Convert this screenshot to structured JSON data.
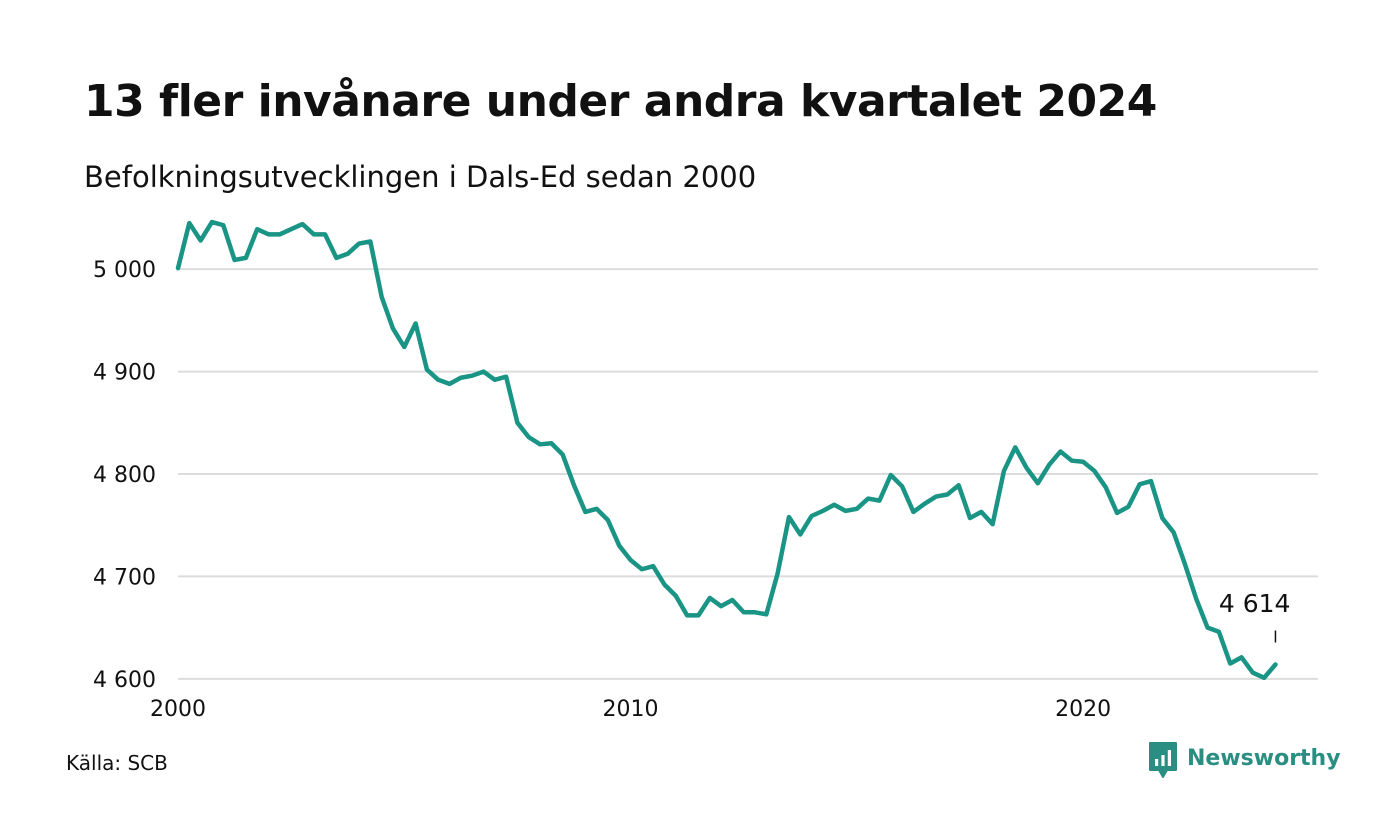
{
  "title": "13 fler invånare under andra kvartalet 2024",
  "subtitle": "Befolkningsutvecklingen i Dals-Ed sedan 2000",
  "source": "Källa: SCB",
  "brand": {
    "name": "Newsworthy",
    "icon": "newsworthy-logo-icon",
    "color": "#2a8f82"
  },
  "colors": {
    "line": "#1a9484",
    "grid": "#dcdcdc",
    "text": "#111111"
  },
  "chart_data": {
    "type": "line",
    "title": "13 fler invånare under andra kvartalet 2024",
    "subtitle": "Befolkningsutvecklingen i Dals-Ed sedan 2000",
    "xlabel": "",
    "ylabel": "",
    "xlim": [
      "2000-01",
      "2024-06"
    ],
    "ylim": [
      4594,
      5048
    ],
    "x_ticks": [
      {
        "label": "2000",
        "year": 2000
      },
      {
        "label": "2010",
        "year": 2010
      },
      {
        "label": "2020",
        "year": 2020
      }
    ],
    "y_ticks": [
      {
        "label": "5 000",
        "value": 5000
      },
      {
        "label": "4 900",
        "value": 4900
      },
      {
        "label": "4 800",
        "value": 4800
      },
      {
        "label": "4 700",
        "value": 4700
      },
      {
        "label": "4 600",
        "value": 4600
      }
    ],
    "grid": true,
    "legend": "none",
    "end_label": "4 614",
    "series": [
      {
        "x": [
          "2000-01",
          "2000-04",
          "2000-07",
          "2000-10",
          "2001-01",
          "2001-04",
          "2001-07",
          "2001-10",
          "2002-01",
          "2002-04",
          "2002-07",
          "2002-10",
          "2003-01",
          "2003-04",
          "2003-07",
          "2003-10",
          "2004-01",
          "2004-04",
          "2004-07",
          "2004-10",
          "2005-01",
          "2005-04",
          "2005-07",
          "2005-10",
          "2006-01",
          "2006-04",
          "2006-07",
          "2006-10",
          "2007-01",
          "2007-04",
          "2007-07",
          "2007-10",
          "2008-01",
          "2008-04",
          "2008-07",
          "2008-10",
          "2009-01",
          "2009-04",
          "2009-07",
          "2009-10",
          "2010-01",
          "2010-04",
          "2010-07",
          "2010-10",
          "2011-01",
          "2011-04",
          "2011-07",
          "2011-10",
          "2012-01",
          "2012-04",
          "2012-07",
          "2012-10",
          "2013-01",
          "2013-04",
          "2013-07",
          "2013-10",
          "2014-01",
          "2014-04",
          "2014-07",
          "2014-10",
          "2015-01",
          "2015-04",
          "2015-07",
          "2015-10",
          "2016-01",
          "2016-04",
          "2016-07",
          "2016-10",
          "2017-01",
          "2017-04",
          "2017-07",
          "2017-10",
          "2018-01",
          "2018-04",
          "2018-07",
          "2018-10",
          "2019-01",
          "2019-04",
          "2019-07",
          "2019-10",
          "2020-01",
          "2020-04",
          "2020-07",
          "2020-10",
          "2021-01",
          "2021-04",
          "2021-07",
          "2021-10",
          "2022-01",
          "2022-04",
          "2022-07",
          "2022-10",
          "2023-01",
          "2023-04",
          "2023-07",
          "2023-10",
          "2024-01",
          "2024-04"
        ],
        "values": [
          5001,
          5045,
          5028,
          5046,
          5043,
          5009,
          5011,
          5039,
          5034,
          5034,
          5039,
          5044,
          5034,
          5034,
          5011,
          5015,
          5025,
          5027,
          4973,
          4942,
          4924,
          4947,
          4902,
          4892,
          4888,
          4894,
          4896,
          4900,
          4892,
          4895,
          4850,
          4836,
          4829,
          4830,
          4819,
          4789,
          4763,
          4766,
          4755,
          4730,
          4716,
          4707,
          4710,
          4692,
          4681,
          4662,
          4662,
          4679,
          4671,
          4677,
          4665,
          4665,
          4663,
          4703,
          4758,
          4741,
          4759,
          4764,
          4770,
          4764,
          4766,
          4776,
          4774,
          4799,
          4788,
          4763,
          4771,
          4778,
          4780,
          4789,
          4757,
          4763,
          4751,
          4803,
          4826,
          4806,
          4791,
          4809,
          4822,
          4813,
          4812,
          4803,
          4787,
          4762,
          4768,
          4790,
          4793,
          4757,
          4743,
          4712,
          4678,
          4650,
          4646,
          4615,
          4621,
          4606,
          4601,
          4614
        ]
      }
    ]
  }
}
